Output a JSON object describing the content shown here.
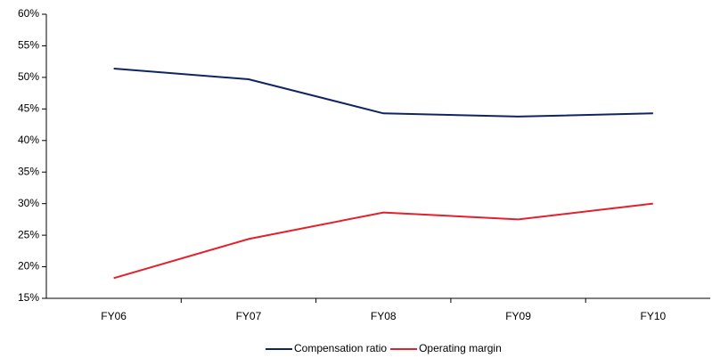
{
  "chart_data": {
    "type": "line",
    "categories": [
      "FY06",
      "FY07",
      "FY08",
      "FY09",
      "FY10"
    ],
    "series": [
      {
        "name": "Compensation ratio",
        "color": "#102462",
        "values": [
          51.4,
          49.7,
          44.3,
          43.8,
          44.3
        ]
      },
      {
        "name": "Operating margin",
        "color": "#e3202b",
        "values": [
          18.2,
          24.4,
          28.6,
          27.5,
          30.0
        ]
      }
    ],
    "ylim": [
      15,
      60
    ],
    "yticks": [
      {
        "value": 15,
        "label": "15%"
      },
      {
        "value": 20,
        "label": "20%"
      },
      {
        "value": 25,
        "label": "25%"
      },
      {
        "value": 30,
        "label": "30%"
      },
      {
        "value": 35,
        "label": "35%"
      },
      {
        "value": 40,
        "label": "40%"
      },
      {
        "value": 45,
        "label": "45%"
      },
      {
        "value": 50,
        "label": "50%"
      },
      {
        "value": 55,
        "label": "55%"
      },
      {
        "value": 60,
        "label": "60%"
      }
    ],
    "grid": false,
    "legend": "bottom"
  }
}
